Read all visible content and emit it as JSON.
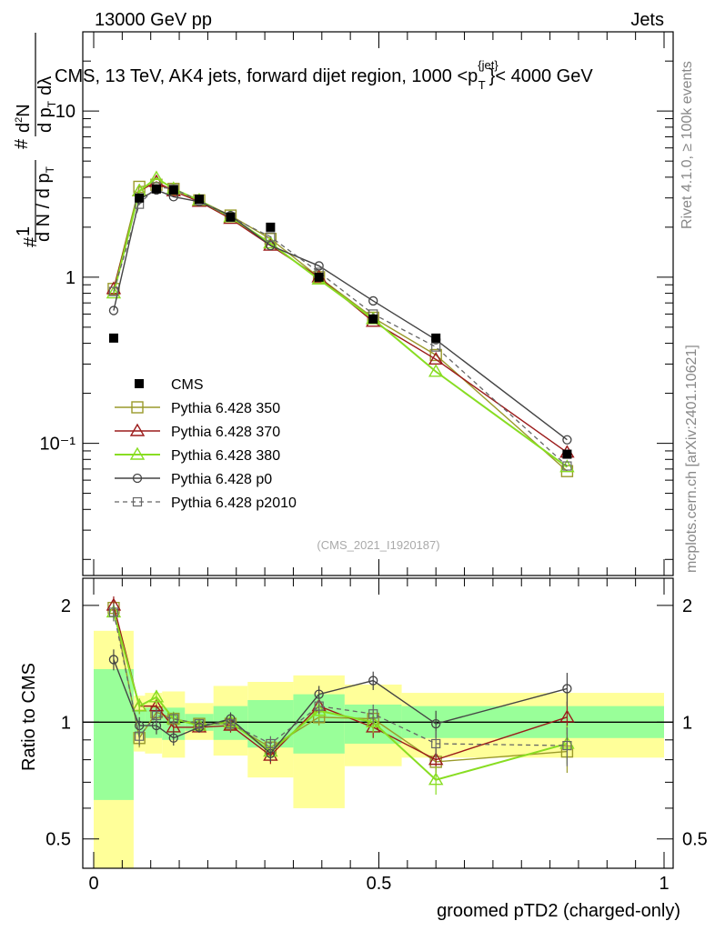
{
  "header": {
    "left": "13000 GeV pp",
    "right": "Jets",
    "plot_title": "CMS, 13 TeV, AK4 jets, forward dijet region, 1000 <p",
    "plot_title_sup": "{jet}",
    "plot_title_sub": "T",
    "plot_title_tail": "}< 4000 GeV"
  },
  "side": {
    "rivet": "Rivet 4.1.0, ≥ 100k events",
    "mcplots": "mcplots.cern.ch [arXiv:2401.10621]"
  },
  "analysis_id": "(CMS_2021_I1920187)",
  "y_label_main": {
    "hash1": "#",
    "one": "1",
    "dN": "d N / d p",
    "dN_sub": "T",
    "hash2": "#",
    "d2N": "d",
    "d2N_sup": "2",
    "d2N_N": "N",
    "dp": "d p",
    "dp_sub": "T",
    "dlam": "dλ"
  },
  "ratio_ylabel": "Ratio to CMS",
  "xlabel": "groomed pTD2 (charged-only)",
  "colors": {
    "cms": "#000000",
    "p350": "#9a9a2b",
    "p370": "#9b1b1b",
    "p380": "#88dd22",
    "p0": "#444444",
    "p2010": "#666666",
    "band_yellow": "#ffff99",
    "band_green": "#99ff99"
  },
  "chart_data": {
    "type": "line",
    "x_range": [
      0,
      1
    ],
    "main": {
      "yscale": "log",
      "ylim": [
        0.016,
        30
      ],
      "y_ticks": [
        {
          "v": 0.1,
          "label": "10⁻¹"
        },
        {
          "v": 1,
          "label": "1"
        },
        {
          "v": 10,
          "label": "10"
        }
      ],
      "series": [
        {
          "name": "CMS",
          "key": "cms",
          "x": [
            0.035,
            0.08,
            0.11,
            0.14,
            0.185,
            0.24,
            0.31,
            0.395,
            0.49,
            0.6,
            0.83
          ],
          "y": [
            0.43,
            3.0,
            3.4,
            3.35,
            2.95,
            2.3,
            2.0,
            1.0,
            0.56,
            0.43,
            0.086
          ]
        },
        {
          "name": "Pythia 6.428 350",
          "key": "p350",
          "x": [
            0.035,
            0.08,
            0.11,
            0.14,
            0.185,
            0.24,
            0.31,
            0.395,
            0.49,
            0.6,
            0.83
          ],
          "y": [
            0.85,
            3.5,
            3.6,
            3.4,
            2.9,
            2.35,
            1.7,
            1.0,
            0.57,
            0.34,
            0.068
          ]
        },
        {
          "name": "Pythia 6.428 370",
          "key": "p370",
          "x": [
            0.035,
            0.08,
            0.11,
            0.14,
            0.185,
            0.24,
            0.31,
            0.395,
            0.49,
            0.6,
            0.83
          ],
          "y": [
            0.85,
            3.3,
            3.75,
            3.3,
            2.85,
            2.25,
            1.55,
            1.0,
            0.54,
            0.32,
            0.088
          ]
        },
        {
          "name": "Pythia 6.428 380",
          "key": "p380",
          "x": [
            0.035,
            0.08,
            0.11,
            0.14,
            0.185,
            0.24,
            0.31,
            0.395,
            0.49,
            0.6,
            0.83
          ],
          "y": [
            0.8,
            3.3,
            3.95,
            3.4,
            2.9,
            2.3,
            1.6,
            0.97,
            0.56,
            0.27,
            0.072
          ]
        },
        {
          "name": "Pythia 6.428 p0",
          "key": "p0",
          "x": [
            0.035,
            0.08,
            0.11,
            0.14,
            0.185,
            0.24,
            0.31,
            0.395,
            0.49,
            0.6,
            0.83
          ],
          "y": [
            0.63,
            2.95,
            3.35,
            3.05,
            2.85,
            2.35,
            1.55,
            1.17,
            0.72,
            0.42,
            0.105
          ]
        },
        {
          "name": "Pythia 6.428 p2010",
          "key": "p2010",
          "x": [
            0.035,
            0.08,
            0.11,
            0.14,
            0.185,
            0.24,
            0.31,
            0.395,
            0.49,
            0.6,
            0.83
          ],
          "y": [
            0.82,
            2.75,
            3.5,
            3.4,
            2.9,
            2.3,
            1.75,
            1.07,
            0.6,
            0.38,
            0.073
          ]
        }
      ]
    },
    "ratio": {
      "yscale": "log",
      "ylim": [
        0.42,
        2.35
      ],
      "y_ticks": [
        {
          "v": 0.5,
          "label": "0.5"
        },
        {
          "v": 1,
          "label": "1"
        },
        {
          "v": 2,
          "label": "2"
        }
      ],
      "x_ticks": [
        {
          "v": 0,
          "label": "0"
        },
        {
          "v": 0.5,
          "label": "0.5"
        },
        {
          "v": 1,
          "label": "1"
        }
      ],
      "bins": [
        {
          "lo": 0.0,
          "hi": 0.07,
          "y_lo": 0.42,
          "y_hi": 1.72,
          "g_lo": 0.63,
          "g_hi": 1.37
        },
        {
          "lo": 0.07,
          "hi": 0.09,
          "y_lo": 0.84,
          "y_hi": 1.17,
          "g_lo": 0.93,
          "g_hi": 1.07
        },
        {
          "lo": 0.09,
          "hi": 0.12,
          "y_lo": 0.83,
          "y_hi": 1.19,
          "g_lo": 0.91,
          "g_hi": 1.09
        },
        {
          "lo": 0.12,
          "hi": 0.16,
          "y_lo": 0.81,
          "y_hi": 1.2,
          "g_lo": 0.9,
          "g_hi": 1.09
        },
        {
          "lo": 0.16,
          "hi": 0.21,
          "y_lo": 0.9,
          "y_hi": 1.12,
          "g_lo": 0.95,
          "g_hi": 1.05
        },
        {
          "lo": 0.21,
          "hi": 0.27,
          "y_lo": 0.82,
          "y_hi": 1.24,
          "g_lo": 0.9,
          "g_hi": 1.1
        },
        {
          "lo": 0.27,
          "hi": 0.35,
          "y_lo": 0.72,
          "y_hi": 1.27,
          "g_lo": 0.86,
          "g_hi": 1.14
        },
        {
          "lo": 0.35,
          "hi": 0.44,
          "y_lo": 0.6,
          "y_hi": 1.32,
          "g_lo": 0.83,
          "g_hi": 1.18
        },
        {
          "lo": 0.44,
          "hi": 0.54,
          "y_lo": 0.77,
          "y_hi": 1.25,
          "g_lo": 0.88,
          "g_hi": 1.11
        },
        {
          "lo": 0.54,
          "hi": 1.0,
          "y_lo": 0.81,
          "y_hi": 1.19,
          "g_lo": 0.91,
          "g_hi": 1.1
        }
      ],
      "series": [
        {
          "name": "Pythia 6.428 350",
          "key": "p350",
          "x": [
            0.035,
            0.08,
            0.11,
            0.14,
            0.185,
            0.24,
            0.31,
            0.395,
            0.49,
            0.6,
            0.83
          ],
          "y": [
            1.97,
            0.91,
            1.06,
            1.02,
            0.99,
            0.99,
            0.86,
            1.03,
            1.02,
            0.79,
            0.84
          ],
          "err": [
            0.1,
            0.05,
            0.05,
            0.04,
            0.03,
            0.04,
            0.04,
            0.05,
            0.06,
            0.06,
            0.1
          ]
        },
        {
          "name": "Pythia 6.428 370",
          "key": "p370",
          "x": [
            0.035,
            0.08,
            0.11,
            0.14,
            0.185,
            0.24,
            0.31,
            0.395,
            0.49,
            0.6,
            0.83
          ],
          "y": [
            2.0,
            1.1,
            1.1,
            0.97,
            0.97,
            0.98,
            0.82,
            1.1,
            0.97,
            0.8,
            1.03
          ],
          "err": [
            0.11,
            0.05,
            0.05,
            0.04,
            0.03,
            0.04,
            0.04,
            0.05,
            0.06,
            0.06,
            0.1
          ]
        },
        {
          "name": "Pythia 6.428 380",
          "key": "p380",
          "x": [
            0.035,
            0.08,
            0.11,
            0.14,
            0.185,
            0.24,
            0.31,
            0.395,
            0.49,
            0.6,
            0.83
          ],
          "y": [
            1.92,
            1.1,
            1.16,
            1.02,
            0.98,
            1.0,
            0.84,
            1.07,
            1.0,
            0.71,
            0.88
          ],
          "err": [
            0.1,
            0.05,
            0.05,
            0.04,
            0.03,
            0.04,
            0.04,
            0.05,
            0.06,
            0.06,
            0.1
          ]
        },
        {
          "name": "Pythia 6.428 p0",
          "key": "p0",
          "x": [
            0.035,
            0.08,
            0.11,
            0.14,
            0.185,
            0.24,
            0.31,
            0.395,
            0.49,
            0.6,
            0.83
          ],
          "y": [
            1.45,
            0.98,
            0.98,
            0.91,
            0.97,
            1.02,
            0.83,
            1.18,
            1.28,
            0.99,
            1.22
          ],
          "err": [
            0.09,
            0.05,
            0.05,
            0.04,
            0.03,
            0.04,
            0.04,
            0.06,
            0.07,
            0.08,
            0.12
          ]
        },
        {
          "name": "Pythia 6.428 p2010",
          "key": "p2010",
          "x": [
            0.035,
            0.08,
            0.11,
            0.14,
            0.185,
            0.24,
            0.31,
            0.395,
            0.49,
            0.6,
            0.83
          ],
          "y": [
            1.92,
            0.92,
            1.04,
            1.02,
            0.99,
            0.99,
            0.88,
            1.1,
            1.05,
            0.88,
            0.87
          ],
          "err": [
            0.1,
            0.05,
            0.05,
            0.04,
            0.03,
            0.04,
            0.04,
            0.05,
            0.06,
            0.07,
            0.1
          ]
        }
      ]
    }
  }
}
